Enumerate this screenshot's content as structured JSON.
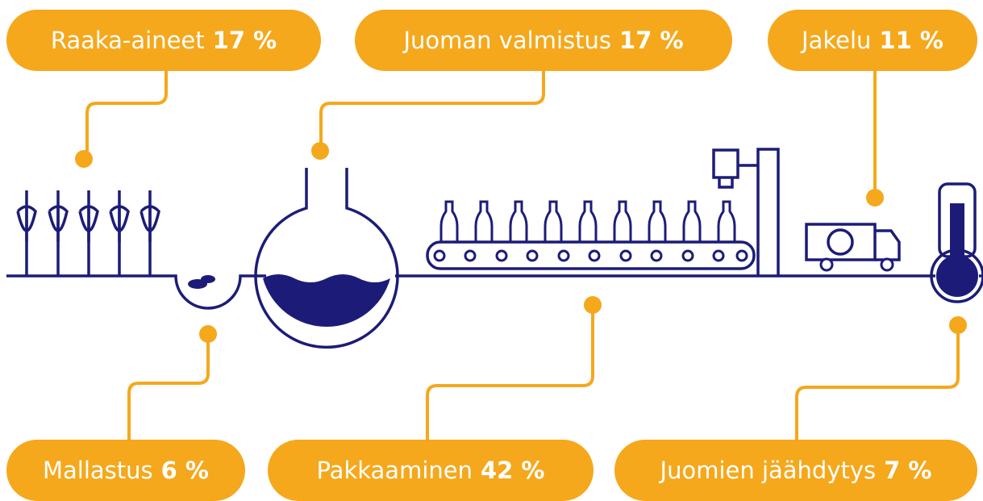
{
  "stages": [
    {
      "label": "Raaka-aineet",
      "value": "17 %"
    },
    {
      "label": "Juoman valmistus",
      "value": "17 %"
    },
    {
      "label": "Jakelu",
      "value": "11 %"
    },
    {
      "label": "Mallastus",
      "value": "6 %"
    },
    {
      "label": "Pakkaaminen",
      "value": "42 %"
    },
    {
      "label": "Juomien jäähdytys",
      "value": "7 %"
    }
  ]
}
